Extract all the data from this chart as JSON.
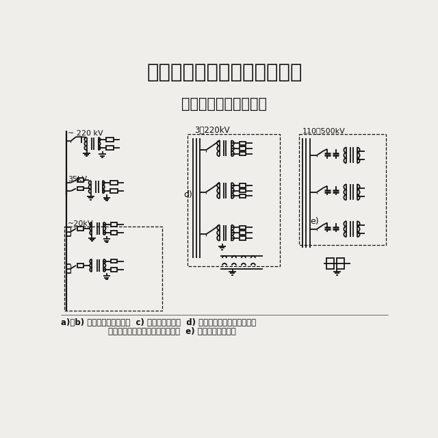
{
  "title": "五、电压互感器二次接线方式",
  "subtitle": "特别注意开口三角接线",
  "caption_line1": "a)、b) 一台电压互感器接线  c) 不完全星形联结  d) 三台单相三绕组电压互感器",
  "caption_line2": "或一台三相五芯式电压互感器接线  e) 电容式互感器接线",
  "bg_color": "#f0eeea",
  "text_color": "#111111",
  "lw": 1.3
}
